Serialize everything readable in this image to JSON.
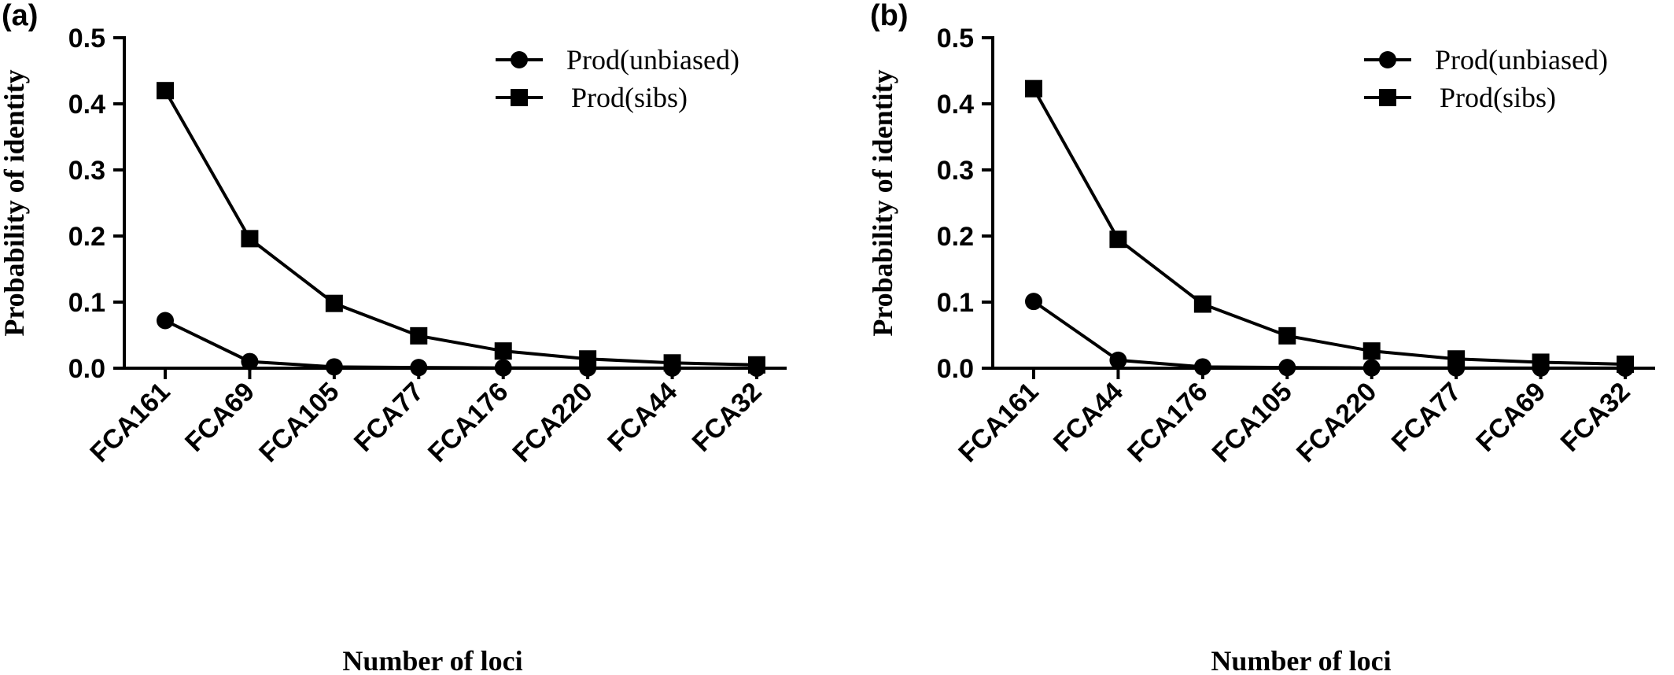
{
  "chart_data": [
    {
      "type": "line",
      "panel_label": "(a)",
      "xlabel": "Number of loci",
      "ylabel": "Probability of identity",
      "ylim": [
        0,
        0.5
      ],
      "yticks": [
        "0.0",
        "0.1",
        "0.2",
        "0.3",
        "0.4",
        "0.5"
      ],
      "categories": [
        "FCA161",
        "FCA69",
        "FCA105",
        "FCA77",
        "FCA176",
        "FCA220",
        "FCA44",
        "FCA32"
      ],
      "legend_position": "top-right",
      "series": [
        {
          "name": "Prod(unbiased)",
          "marker": "circle",
          "values": [
            0.072,
            0.01,
            0.002,
            0.001,
            0.0005,
            0.0003,
            0.0002,
            0.0001
          ]
        },
        {
          "name": "Prod(sibs)",
          "marker": "square",
          "values": [
            0.42,
            0.196,
            0.098,
            0.049,
            0.026,
            0.014,
            0.008,
            0.005
          ]
        }
      ]
    },
    {
      "type": "line",
      "panel_label": "(b)",
      "xlabel": "Number of loci",
      "ylabel": "Probability of identity",
      "ylim": [
        0,
        0.5
      ],
      "yticks": [
        "0.0",
        "0.1",
        "0.2",
        "0.3",
        "0.4",
        "0.5"
      ],
      "categories": [
        "FCA161",
        "FCA44",
        "FCA176",
        "FCA105",
        "FCA220",
        "FCA77",
        "FCA69",
        "FCA32"
      ],
      "legend_position": "top-right",
      "series": [
        {
          "name": "Prod(unbiased)",
          "marker": "circle",
          "values": [
            0.101,
            0.012,
            0.002,
            0.001,
            0.0005,
            0.0003,
            0.0002,
            0.0001
          ]
        },
        {
          "name": "Prod(sibs)",
          "marker": "square",
          "values": [
            0.423,
            0.195,
            0.097,
            0.049,
            0.026,
            0.014,
            0.009,
            0.006
          ]
        }
      ]
    }
  ]
}
